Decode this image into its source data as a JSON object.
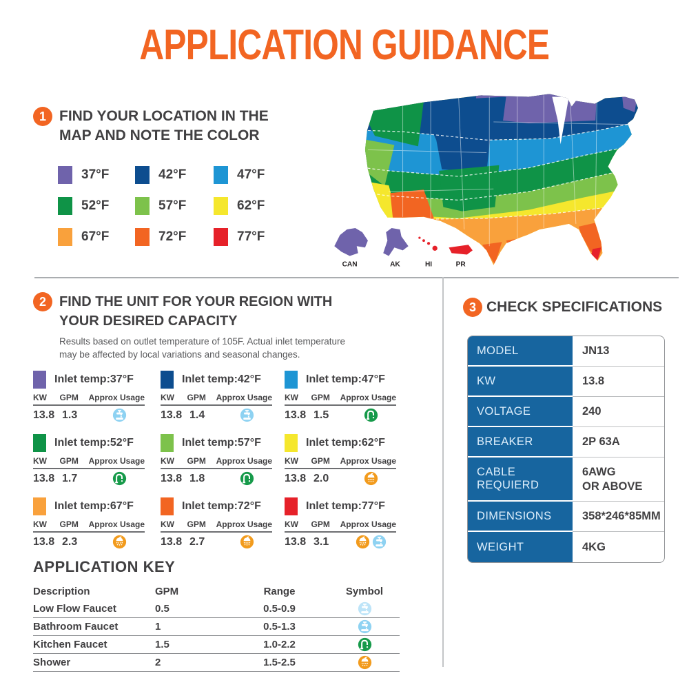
{
  "page": {
    "title": "APPLICATION GUIDANCE",
    "accent_color": "#F26522",
    "text_color": "#414042"
  },
  "section1": {
    "number": "1",
    "heading_line1": "FIND YOUR LOCATION IN THE",
    "heading_line2": "MAP AND NOTE THE COLOR",
    "legend": [
      {
        "label": "37°F",
        "color": "#6f63ab"
      },
      {
        "label": "42°F",
        "color": "#0d4d8f"
      },
      {
        "label": "47°F",
        "color": "#1e95d4"
      },
      {
        "label": "52°F",
        "color": "#0f9347"
      },
      {
        "label": "57°F",
        "color": "#7dc24b"
      },
      {
        "label": "62°F",
        "color": "#f5e72d"
      },
      {
        "label": "67°F",
        "color": "#f9a13c"
      },
      {
        "label": "72°F",
        "color": "#f26522"
      },
      {
        "label": "77°F",
        "color": "#e62129"
      }
    ],
    "map_labels": [
      "CAN",
      "AK",
      "HI",
      "PR"
    ]
  },
  "section2": {
    "number": "2",
    "heading_line1": "FIND THE UNIT FOR YOUR REGION WITH",
    "heading_line2": "YOUR DESIRED CAPACITY",
    "note_line1": "Results based on outlet temperature of 105F. Actual inlet temperature",
    "note_line2": "may be affected by local variations and seasonal changes.",
    "col_headers": {
      "kw": "KW",
      "gpm": "GPM",
      "usage": "Approx Usage"
    },
    "tables": [
      {
        "label": "Inlet temp:37°F",
        "color": "#6f63ab",
        "kw": "13.8",
        "gpm": "1.3",
        "icons": [
          "bathroom-faucet"
        ]
      },
      {
        "label": "Inlet temp:42°F",
        "color": "#0d4d8f",
        "kw": "13.8",
        "gpm": "1.4",
        "icons": [
          "bathroom-faucet"
        ]
      },
      {
        "label": "Inlet temp:47°F",
        "color": "#1e95d4",
        "kw": "13.8",
        "gpm": "1.5",
        "icons": [
          "kitchen-faucet"
        ]
      },
      {
        "label": "Inlet temp:52°F",
        "color": "#0f9347",
        "kw": "13.8",
        "gpm": "1.7",
        "icons": [
          "kitchen-faucet"
        ]
      },
      {
        "label": "Inlet temp:57°F",
        "color": "#7dc24b",
        "kw": "13.8",
        "gpm": "1.8",
        "icons": [
          "kitchen-faucet"
        ]
      },
      {
        "label": "Inlet temp:62°F",
        "color": "#f5e72d",
        "kw": "13.8",
        "gpm": "2.0",
        "icons": [
          "shower"
        ]
      },
      {
        "label": "Inlet temp:67°F",
        "color": "#f9a13c",
        "kw": "13.8",
        "gpm": "2.3",
        "icons": [
          "shower"
        ]
      },
      {
        "label": "Inlet temp:72°F",
        "color": "#f26522",
        "kw": "13.8",
        "gpm": "2.7",
        "icons": [
          "shower"
        ]
      },
      {
        "label": "Inlet temp:77°F",
        "color": "#e62129",
        "kw": "13.8",
        "gpm": "3.1",
        "icons": [
          "shower",
          "bathroom-faucet"
        ]
      }
    ]
  },
  "application_key": {
    "title": "APPLICATION KEY",
    "headers": [
      "Description",
      "GPM",
      "Range",
      "Symbol"
    ],
    "rows": [
      {
        "description": "Low Flow Faucet",
        "gpm": "0.5",
        "range": "0.5-0.9",
        "symbol": "low-flow-faucet"
      },
      {
        "description": "Bathroom Faucet",
        "gpm": "1",
        "range": "0.5-1.3",
        "symbol": "bathroom-faucet"
      },
      {
        "description": "Kitchen Faucet",
        "gpm": "1.5",
        "range": "1.0-2.2",
        "symbol": "kitchen-faucet"
      },
      {
        "description": "Shower",
        "gpm": "2",
        "range": "1.5-2.5",
        "symbol": "shower"
      }
    ]
  },
  "section3": {
    "number": "3",
    "heading": "CHECK SPECIFICATIONS",
    "label_bg": "#17659f",
    "table": [
      {
        "label": "MODEL",
        "value": "JN13"
      },
      {
        "label": "KW",
        "value": "13.8"
      },
      {
        "label": "VOLTAGE",
        "value": "240"
      },
      {
        "label": "BREAKER",
        "value": "2P 63A"
      },
      {
        "label": "CABLE REQUIERD",
        "value": "6AWG\nOR ABOVE"
      },
      {
        "label": "DIMENSIONS",
        "value": "358*246*85MM"
      },
      {
        "label": "WEIGHT",
        "value": "4KG"
      }
    ]
  },
  "icon_colors": {
    "low-flow-faucet": "#bde4f8",
    "bathroom-faucet": "#8ed2f2",
    "kitchen-faucet": "#169a4a",
    "shower": "#f29b1d"
  }
}
